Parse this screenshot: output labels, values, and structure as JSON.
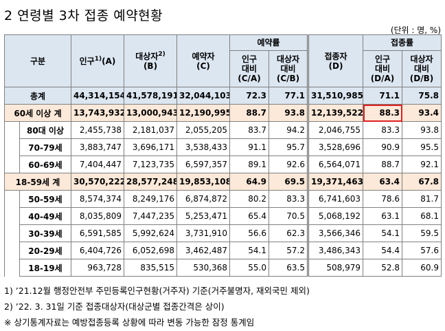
{
  "title": "2  연령별 3차 접종 예약현황",
  "unit": "(단위 : 명, %)",
  "headers": {
    "category": "구분",
    "population": "인구",
    "population_sup": "1)",
    "population_code": "(A)",
    "target": "대상자",
    "target_sup": "2)",
    "target_code": "(B)",
    "reserved": "예약자",
    "reserved_code": "(C)",
    "reserve_rate": "예약률",
    "rate_pop_c": [
      "인구",
      "대비",
      "(C/A)"
    ],
    "rate_target_c": [
      "대상자",
      "대비",
      "(C/B)"
    ],
    "vaccinated": "접종자",
    "vaccinated_code": "(D)",
    "vacc_rate": "접종률",
    "rate_pop_d": [
      "인구",
      "대비",
      "(D/A)"
    ],
    "rate_target_d": [
      "대상자",
      "대비",
      "(D/B)"
    ]
  },
  "rows": [
    {
      "label": "총계",
      "pop": "44,314,154",
      "target": "41,578,191",
      "reserved": "32,044,103",
      "ca": "72.3",
      "cb": "77.1",
      "vacc": "31,510,985",
      "da": "71.1",
      "db": "75.8"
    },
    {
      "label": "60세 이상 계",
      "pop": "13,743,932",
      "target": "13,000,943",
      "reserved": "12,190,995",
      "ca": "88.7",
      "cb": "93.8",
      "vacc": "12,139,522",
      "da": "88.3",
      "db": "93.4"
    },
    {
      "label": "80대 이상",
      "pop": "2,455,738",
      "target": "2,181,037",
      "reserved": "2,055,205",
      "ca": "83.7",
      "cb": "94.2",
      "vacc": "2,046,755",
      "da": "83.3",
      "db": "93.8"
    },
    {
      "label": "70-79세",
      "pop": "3,883,747",
      "target": "3,696,171",
      "reserved": "3,538,433",
      "ca": "91.1",
      "cb": "95.7",
      "vacc": "3,528,696",
      "da": "90.9",
      "db": "95.5"
    },
    {
      "label": "60-69세",
      "pop": "7,404,447",
      "target": "7,123,735",
      "reserved": "6,597,357",
      "ca": "89.1",
      "cb": "92.6",
      "vacc": "6,564,071",
      "da": "88.7",
      "db": "92.1"
    },
    {
      "label": "18-59세 계",
      "pop": "30,570,222",
      "target": "28,577,248",
      "reserved": "19,853,108",
      "ca": "64.9",
      "cb": "69.5",
      "vacc": "19,371,463",
      "da": "63.4",
      "db": "67.8"
    },
    {
      "label": "50-59세",
      "pop": "8,574,374",
      "target": "8,249,176",
      "reserved": "6,874,872",
      "ca": "80.2",
      "cb": "83.3",
      "vacc": "6,741,603",
      "da": "78.6",
      "db": "81.7"
    },
    {
      "label": "40-49세",
      "pop": "8,035,809",
      "target": "7,447,235",
      "reserved": "5,253,471",
      "ca": "65.4",
      "cb": "70.5",
      "vacc": "5,068,192",
      "da": "63.1",
      "db": "68.1"
    },
    {
      "label": "30-39세",
      "pop": "6,591,585",
      "target": "5,992,624",
      "reserved": "3,731,910",
      "ca": "56.6",
      "cb": "62.3",
      "vacc": "3,566,346",
      "da": "54.1",
      "db": "59.5"
    },
    {
      "label": "20-29세",
      "pop": "6,404,726",
      "target": "6,052,698",
      "reserved": "3,462,487",
      "ca": "54.1",
      "cb": "57.2",
      "vacc": "3,486,343",
      "da": "54.4",
      "db": "57.6"
    },
    {
      "label": "18-19세",
      "pop": "963,728",
      "target": "835,515",
      "reserved": "530,368",
      "ca": "55.0",
      "cb": "63.5",
      "vacc": "508,979",
      "da": "52.8",
      "db": "60.9"
    }
  ],
  "notes": [
    "1) ’21.12월 행정안전부 주민등록인구현황(거주자) 기준(거주불명자, 재외국민 제외)",
    "2) ’22. 3. 31일 기준 접종대상자(대상군별 접종간격은 상이)",
    "※ 상기통계자료는 예방접종등록 상황에 따라 변동 가능한 잠정 통계임"
  ],
  "highlight_color": "#e02020"
}
